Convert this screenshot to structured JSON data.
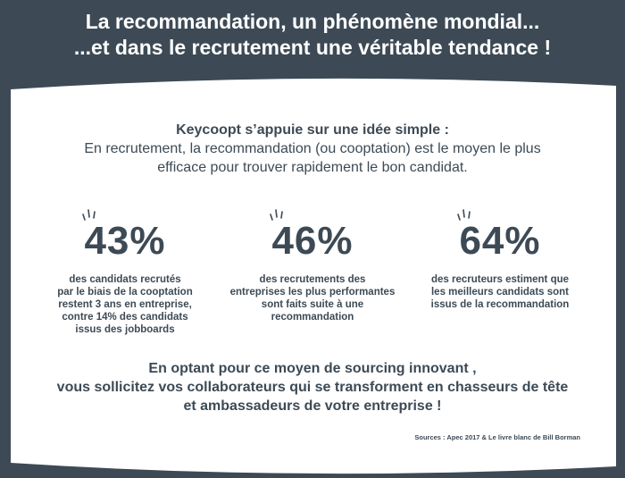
{
  "header": {
    "line1": "La recommandation, un phénomène mondial...",
    "line2": "...et dans le recrutement une véritable tendance !"
  },
  "intro": {
    "lead": "Keycoopt s’appuie sur une idée simple :",
    "line1": "En recrutement, la recommandation (ou cooptation) est le moyen le plus",
    "line2": "efficace pour trouver rapidement le bon candidat."
  },
  "stats": [
    {
      "value": "43%",
      "desc": [
        "des candidats recrutés",
        "par le biais de la cooptation",
        "restent 3 ans en entreprise,",
        "contre 14% des candidats",
        "issus des jobboards"
      ]
    },
    {
      "value": "46%",
      "desc": [
        "des recrutements des",
        "entreprises les plus performantes",
        "sont faits suite à une",
        "recommandation"
      ]
    },
    {
      "value": "64%",
      "desc": [
        "des recruteurs estiment que",
        "les meilleurs candidats sont",
        "issus de la recommandation"
      ]
    }
  ],
  "closing": {
    "line1": "En optant pour ce moyen de sourcing innovant ,",
    "line2": "vous sollicitez vos collaborateurs qui se transforment en chasseurs de tête",
    "line3": "et ambassadeurs de votre entreprise !"
  },
  "sources": "Sources : Apec 2017 & Le livre blanc de Bill Borman",
  "colors": {
    "background": "#3d4a55",
    "card": "#ffffff",
    "text": "#3d4a55"
  }
}
